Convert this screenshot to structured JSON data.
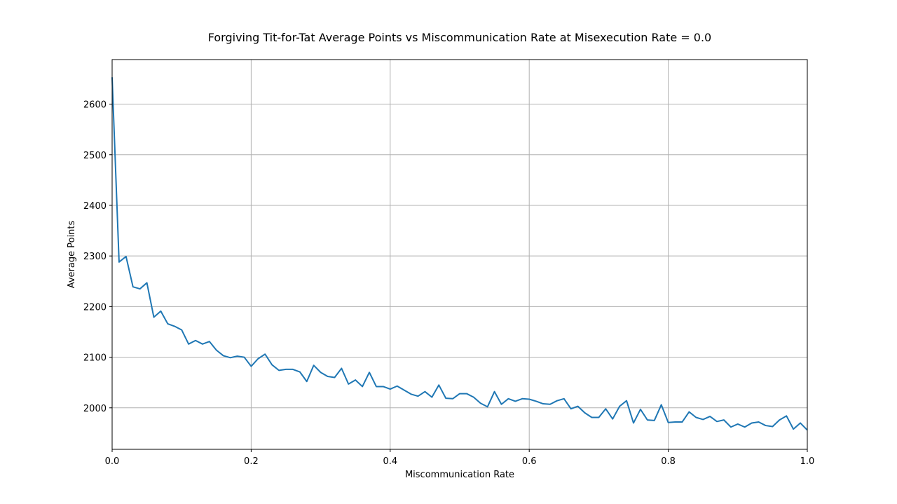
{
  "chart_data": {
    "type": "line",
    "title": "Forgiving Tit-for-Tat Average Points vs Miscommunication Rate at Misexecution Rate = 0.0",
    "xlabel": "Miscommunication Rate",
    "ylabel": "Average Points",
    "xlim": [
      0,
      1
    ],
    "ylim": [
      1918,
      2688
    ],
    "xticks": [
      0.0,
      0.2,
      0.4,
      0.6,
      0.8,
      1.0
    ],
    "xtick_labels": [
      "0.0",
      "0.2",
      "0.4",
      "0.6",
      "0.8",
      "1.0"
    ],
    "yticks": [
      2000,
      2100,
      2200,
      2300,
      2400,
      2500,
      2600
    ],
    "ytick_labels": [
      "2000",
      "2100",
      "2200",
      "2300",
      "2400",
      "2500",
      "2600"
    ],
    "grid": true,
    "legend": "none",
    "series": [
      {
        "color": "#1f77b4",
        "x": [
          0.0,
          0.01,
          0.02,
          0.03,
          0.04,
          0.05,
          0.06,
          0.07,
          0.08,
          0.09,
          0.1,
          0.11,
          0.12,
          0.13,
          0.14,
          0.15,
          0.16,
          0.17,
          0.18,
          0.19,
          0.2,
          0.21,
          0.22,
          0.23,
          0.24,
          0.25,
          0.26,
          0.27,
          0.28,
          0.29,
          0.3,
          0.31,
          0.32,
          0.33,
          0.34,
          0.35,
          0.36,
          0.37,
          0.38,
          0.39,
          0.4,
          0.41,
          0.42,
          0.43,
          0.44,
          0.45,
          0.46,
          0.47,
          0.48,
          0.49,
          0.5,
          0.51,
          0.52,
          0.53,
          0.54,
          0.55,
          0.56,
          0.57,
          0.58,
          0.59,
          0.6,
          0.61,
          0.62,
          0.63,
          0.64,
          0.65,
          0.66,
          0.67,
          0.68,
          0.69,
          0.7,
          0.71,
          0.72,
          0.73,
          0.74,
          0.75,
          0.76,
          0.77,
          0.78,
          0.79,
          0.8,
          0.81,
          0.82,
          0.83,
          0.84,
          0.85,
          0.86,
          0.87,
          0.88,
          0.89,
          0.9,
          0.91,
          0.92,
          0.93,
          0.94,
          0.95,
          0.96,
          0.97,
          0.98,
          0.99,
          1.0
        ],
        "y": [
          2653,
          2288,
          2299,
          2239,
          2235,
          2247,
          2179,
          2191,
          2166,
          2161,
          2154,
          2126,
          2133,
          2126,
          2131,
          2114,
          2103,
          2099,
          2102,
          2100,
          2082,
          2097,
          2106,
          2085,
          2074,
          2076,
          2076,
          2071,
          2052,
          2084,
          2070,
          2062,
          2060,
          2078,
          2047,
          2055,
          2042,
          2070,
          2042,
          2042,
          2037,
          2043,
          2035,
          2027,
          2023,
          2032,
          2021,
          2045,
          2019,
          2018,
          2028,
          2028,
          2021,
          2009,
          2002,
          2032,
          2007,
          2018,
          2013,
          2018,
          2017,
          2013,
          2008,
          2007,
          2014,
          2018,
          1998,
          2003,
          1990,
          1981,
          1981,
          1998,
          1978,
          2003,
          2014,
          1970,
          1997,
          1976,
          1975,
          2006,
          1971,
          1972,
          1972,
          1992,
          1981,
          1977,
          1983,
          1973,
          1976,
          1962,
          1968,
          1962,
          1970,
          1972,
          1965,
          1963,
          1976,
          1984,
          1958,
          1970,
          1956
        ]
      }
    ]
  }
}
